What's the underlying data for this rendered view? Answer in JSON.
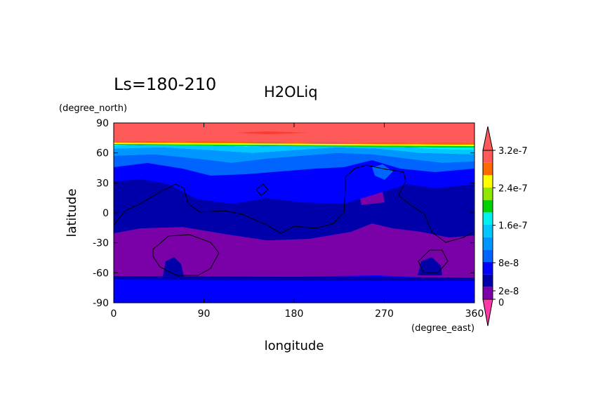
{
  "chart_data": {
    "type": "heatmap",
    "title": "H2OLiq",
    "subtitle": "Ls=180-210",
    "xlabel": "longitude",
    "ylabel": "latitude",
    "x_units": "(degree_east)",
    "y_units": "(degree_north)",
    "xlim": [
      0,
      360
    ],
    "ylim": [
      -90,
      90
    ],
    "x_ticks": [
      "0",
      "90",
      "180",
      "270",
      "360"
    ],
    "y_ticks": [
      "90",
      "60",
      "30",
      "0",
      "-30",
      "-60",
      "-90"
    ],
    "x_tick_values": [
      0,
      90,
      180,
      270,
      360
    ],
    "y_tick_values": [
      90,
      60,
      30,
      0,
      -30,
      -60,
      -90
    ],
    "colorbar": {
      "labels": [
        "3.2e-7",
        "2.4e-7",
        "1.6e-7",
        "8e-8",
        "2e-8",
        "0"
      ],
      "label_values": [
        3.2e-07,
        2.4e-07,
        1.6e-07,
        8e-08,
        2e-08,
        0
      ],
      "levels": [
        0,
        2e-08,
        4e-08,
        8e-08,
        1.2e-07,
        1.6e-07,
        2e-07,
        2.4e-07,
        2.8e-07,
        3.2e-07
      ],
      "colors": [
        "#7a00a8",
        "#0000aa",
        "#0000ff",
        "#0064ff",
        "#0096ff",
        "#00c8ff",
        "#00f0f0",
        "#00d200",
        "#90e800",
        "#ffff00",
        "#ff6a00",
        "#ff5a5a"
      ],
      "under_color": "#ff3aa6",
      "over_color": "#ff5a5a"
    },
    "bands": [
      {
        "level": "above 3.2e-7",
        "color": "#ff5a5a",
        "lat_range": [
          70,
          85
        ]
      },
      {
        "level": "2.8e-7 to 3.2e-7",
        "color": "#ff6a00",
        "lat_range": [
          68,
          70
        ]
      },
      {
        "level": "2.4e-7 to 2.8e-7",
        "color": "#ffff00",
        "lat_range": [
          67,
          68
        ]
      },
      {
        "level": "2.0e-7 to 2.4e-7",
        "color": "#00d200",
        "lat_range": [
          66,
          67
        ]
      },
      {
        "level": "1.6e-7 to 2.0e-7",
        "color": "#00f0f0",
        "lat_range": [
          62,
          66
        ]
      },
      {
        "level": "1.2e-7 to 1.6e-7",
        "color": "#0096ff",
        "lat_range": [
          50,
          60
        ]
      },
      {
        "level": "8e-8 to 1.2e-7",
        "color": "#0064ff",
        "lat_range": [
          35,
          55
        ]
      },
      {
        "level": "4e-8 to 8e-8",
        "color": "#0000ff",
        "lat_range": [
          15,
          45
        ]
      },
      {
        "level": "2e-8 to 4e-8",
        "color": "#0000aa",
        "lat_range": [
          -20,
          30
        ]
      },
      {
        "level": "0 to 2e-8",
        "color": "#7a00a8",
        "lat_range": [
          -62,
          -15
        ]
      },
      {
        "level": "4e-8 to 8e-8 (south)",
        "color": "#0000ff",
        "lat_range": [
          -90,
          -65
        ]
      }
    ]
  }
}
